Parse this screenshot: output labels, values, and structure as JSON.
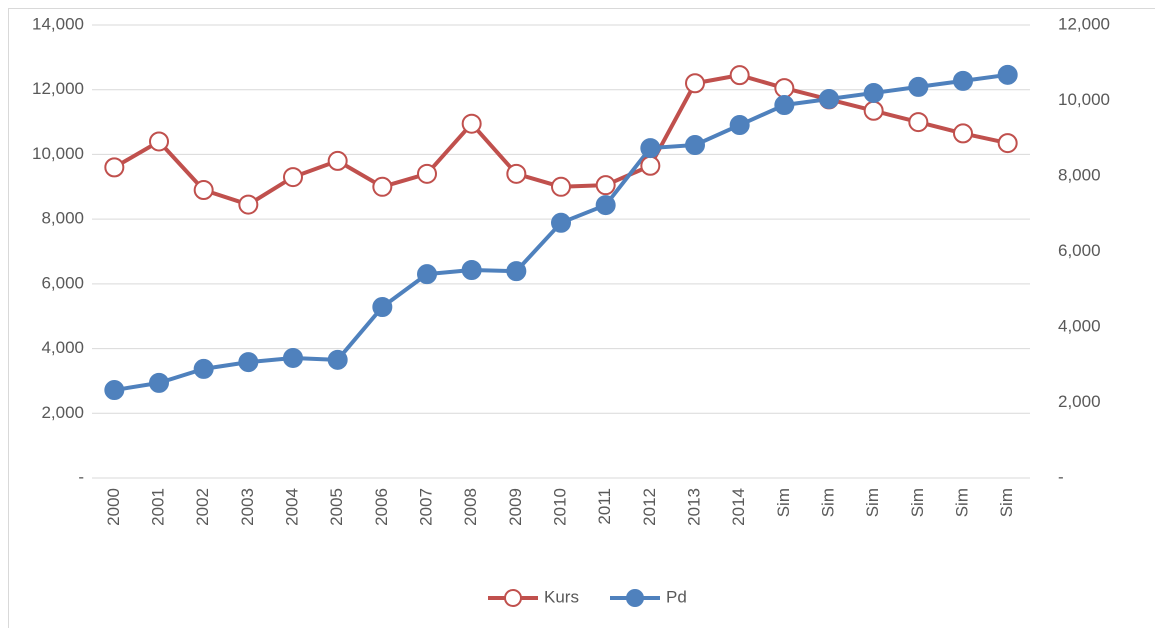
{
  "chart_data": {
    "type": "line",
    "categories": [
      "2000",
      "2001",
      "2002",
      "2003",
      "2004",
      "2005",
      "2006",
      "2007",
      "2008",
      "2009",
      "2010",
      "2011",
      "2012",
      "2013",
      "2014",
      "Sim",
      "Sim",
      "Sim",
      "Sim",
      "Sim",
      "Sim"
    ],
    "series": [
      {
        "name": "Kurs",
        "color": "#c0504d",
        "marker": "hollow",
        "values": [
          9600,
          10400,
          8900,
          8450,
          9300,
          9800,
          9000,
          9400,
          10950,
          9400,
          9000,
          9050,
          9650,
          12200,
          12450,
          12050,
          11700,
          11350,
          11000,
          10650,
          10350
        ]
      },
      {
        "name": "Pd",
        "color": "#4f81bd",
        "marker": "filled",
        "axis": "y2",
        "values": [
          2330,
          2520,
          2890,
          3070,
          3180,
          3130,
          4530,
          5400,
          5510,
          5480,
          6760,
          7230,
          8740,
          8820,
          9350,
          9880,
          10040,
          10200,
          10360,
          10520,
          10680
        ]
      }
    ],
    "ylim": [
      0,
      14000
    ],
    "yticks": [
      {
        "value": 0,
        "label": "-"
      },
      {
        "value": 2000,
        "label": "2,000"
      },
      {
        "value": 4000,
        "label": "4,000"
      },
      {
        "value": 6000,
        "label": "6,000"
      },
      {
        "value": 8000,
        "label": "8,000"
      },
      {
        "value": 10000,
        "label": "10,000"
      },
      {
        "value": 12000,
        "label": "12,000"
      },
      {
        "value": 14000,
        "label": "14,000"
      }
    ],
    "y2lim": [
      0,
      12000
    ],
    "y2ticks": [
      {
        "value": 0,
        "label": "-"
      },
      {
        "value": 2000,
        "label": "2,000"
      },
      {
        "value": 4000,
        "label": "4,000"
      },
      {
        "value": 6000,
        "label": "6,000"
      },
      {
        "value": 8000,
        "label": "8,000"
      },
      {
        "value": 10000,
        "label": "10,000"
      },
      {
        "value": 12000,
        "label": "12,000"
      }
    ],
    "grid": true,
    "legend": "bottom"
  }
}
